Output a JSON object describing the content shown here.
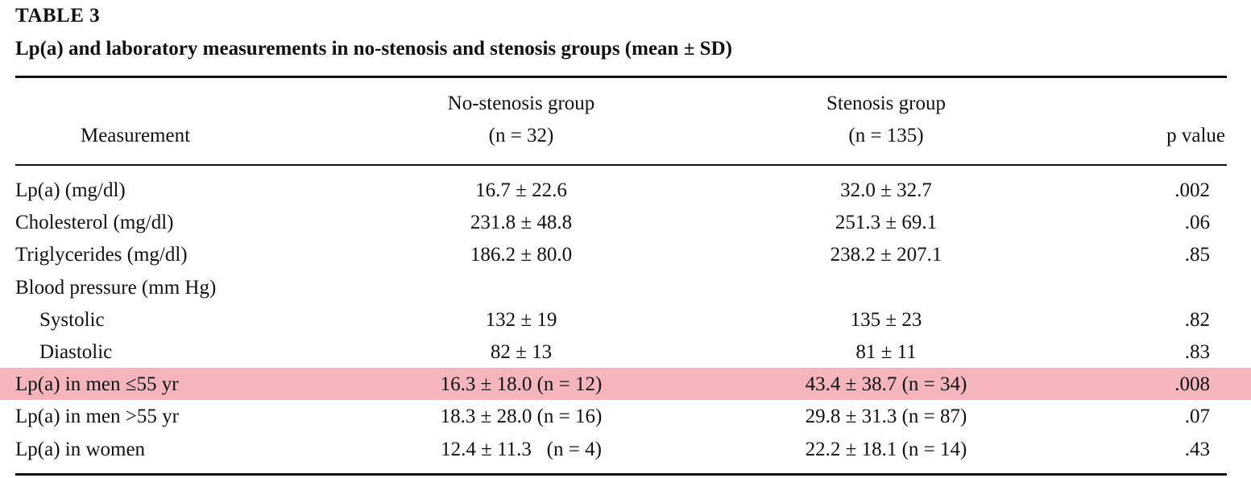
{
  "table": {
    "label": "TABLE 3",
    "title": "Lp(a) and laboratory measurements in no-stenosis and stenosis groups (mean ± SD)",
    "highlight_color": "#f4b6bc",
    "headers": {
      "measurement": "Measurement",
      "no_stenosis_name": "No-stenosis group",
      "no_stenosis_n": "(n = 32)",
      "stenosis_name": "Stenosis group",
      "stenosis_n": "(n = 135)",
      "p_value": "p value"
    },
    "rows": [
      {
        "measurement": "Lp(a) (mg/dl)",
        "no_stenosis": "16.7 ± 22.6",
        "stenosis": "32.0 ± 32.7",
        "p": ".002",
        "indent": false,
        "highlighted": false
      },
      {
        "measurement": "Cholesterol (mg/dl)",
        "no_stenosis": "231.8 ± 48.8",
        "stenosis": "251.3 ± 69.1",
        "p": ".06",
        "indent": false,
        "highlighted": false
      },
      {
        "measurement": "Triglycerides (mg/dl)",
        "no_stenosis": "186.2 ± 80.0",
        "stenosis": "238.2 ± 207.1",
        "p": ".85",
        "indent": false,
        "highlighted": false
      },
      {
        "measurement": "Blood pressure (mm Hg)",
        "no_stenosis": "",
        "stenosis": "",
        "p": "",
        "indent": false,
        "highlighted": false
      },
      {
        "measurement": "Systolic",
        "no_stenosis": "132 ± 19",
        "stenosis": "135 ± 23",
        "p": ".82",
        "indent": true,
        "highlighted": false
      },
      {
        "measurement": "Diastolic",
        "no_stenosis": "82 ± 13",
        "stenosis": "81 ± 11",
        "p": ".83",
        "indent": true,
        "highlighted": false
      },
      {
        "measurement": "Lp(a) in men ≤55 yr",
        "no_stenosis": "16.3 ± 18.0 (n = 12)",
        "stenosis": "43.4 ± 38.7 (n = 34)",
        "p": ".008",
        "indent": false,
        "highlighted": true
      },
      {
        "measurement": "Lp(a) in men >55 yr",
        "no_stenosis": "18.3 ± 28.0 (n = 16)",
        "stenosis": "29.8 ± 31.3 (n = 87)",
        "p": ".07",
        "indent": false,
        "highlighted": false
      },
      {
        "measurement": "Lp(a) in women",
        "no_stenosis": "12.4 ± 11.3   (n = 4)",
        "stenosis": "22.2 ± 18.1 (n = 14)",
        "p": ".43",
        "indent": false,
        "highlighted": false
      }
    ]
  }
}
